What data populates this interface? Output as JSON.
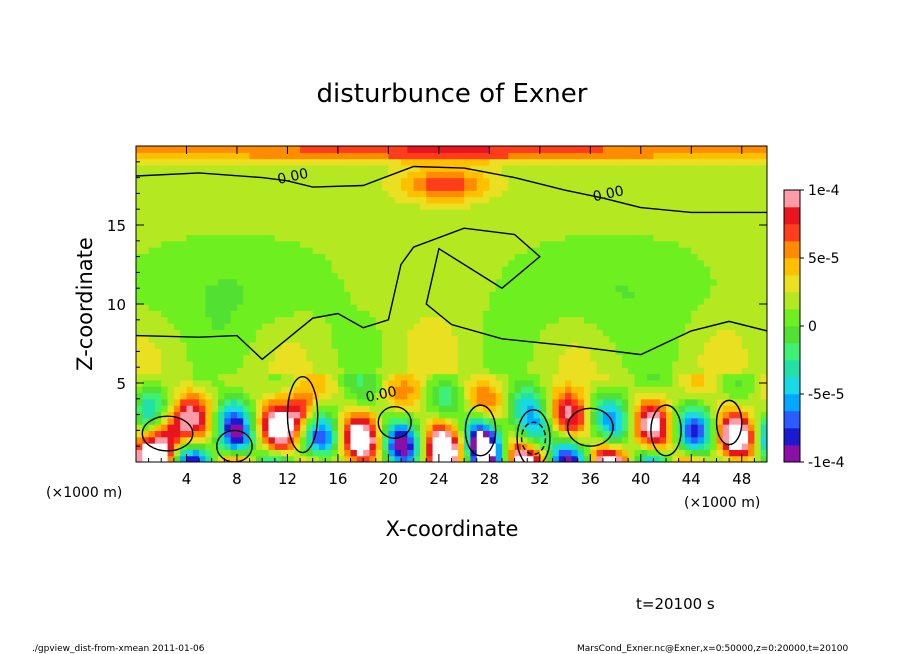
{
  "chart_data": {
    "type": "heatmap",
    "title": "disturbunce of Exner",
    "xlabel": "X-coordinate",
    "ylabel": "Z-coordinate",
    "x_unit": "(×1000 m)",
    "y_unit": "(×1000 m)",
    "xlim": [
      0,
      50
    ],
    "ylim": [
      0,
      20
    ],
    "x_ticks": [
      4,
      8,
      12,
      16,
      20,
      24,
      28,
      32,
      36,
      40,
      44,
      48
    ],
    "x_tick_labels": [
      "4",
      "8",
      "12",
      "16",
      "20",
      "24",
      "28",
      "32",
      "36",
      "40",
      "44",
      "48"
    ],
    "y_ticks": [
      5,
      10,
      15
    ],
    "y_tick_labels": [
      "5",
      "10",
      "15"
    ],
    "colorbar": {
      "min": -0.0001,
      "max": 0.0001,
      "ticks": [
        0.0001,
        5e-05,
        0,
        -5e-05,
        -0.0001
      ],
      "tick_labels": [
        "1e-4",
        "5e-5",
        "0",
        "-5e-5",
        "-1e-4"
      ],
      "colors": [
        "#8b0fa6",
        "#1a1ad0",
        "#2a5cff",
        "#00a8ff",
        "#1ad9e6",
        "#22e0a8",
        "#3ef074",
        "#52e032",
        "#6ef020",
        "#b4e820",
        "#e8e020",
        "#ffc000",
        "#ff8c00",
        "#ff3c1c",
        "#e8141e",
        "#ff9aa8"
      ]
    },
    "contour_labels": [
      {
        "text": "0.00",
        "x": 12.5,
        "z": 17.8
      },
      {
        "text": "0.00",
        "x": 37.5,
        "z": 16.7
      },
      {
        "text": "0.00",
        "x": 19.5,
        "z": 4.0
      }
    ],
    "features": [
      {
        "kind": "positive-max",
        "x": 24.5,
        "z": 17.6,
        "level": 8e-05
      },
      {
        "kind": "positive-band",
        "x": 25,
        "z": 19.7,
        "level": 4e-05
      },
      {
        "kind": "negative-cell",
        "x": 31.5,
        "z": 1.5,
        "level": -0.0001
      },
      {
        "kind": "negative-cell",
        "x": 7.8,
        "z": 1.0,
        "level": -0.0001
      },
      {
        "kind": "negative-cell",
        "x": 27.3,
        "z": 2.0,
        "level": -0.0001
      },
      {
        "kind": "positive-cell",
        "x": 13.2,
        "z": 3.0,
        "level": 0.0001
      },
      {
        "kind": "positive-cell",
        "x": 2.5,
        "z": 1.8,
        "level": 0.0001
      }
    ],
    "annotations": [
      "t=20100 s"
    ]
  },
  "footer": {
    "left": "./gpview_dist-from-xmean  2011-01-06",
    "right": "MarsCond_Exner.nc@Exner,x=0:50000,z=0:20000,t=20100"
  }
}
